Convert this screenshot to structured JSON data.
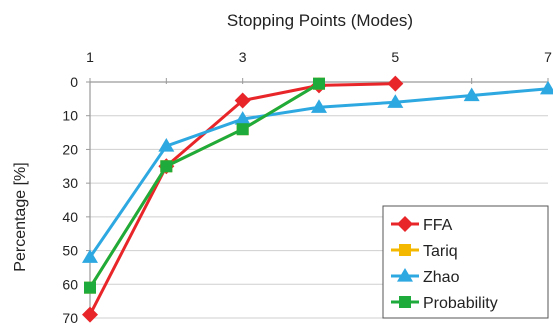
{
  "chart_data": {
    "type": "line",
    "title": "Stopping Points (Modes)",
    "xlabel": "Stopping Points (Modes)",
    "ylabel": "Percentage [%]",
    "xlim": [
      1,
      7
    ],
    "ylim": [
      0,
      70
    ],
    "y_inverted": true,
    "x_axis_position": "top",
    "x_ticks": [
      1,
      2,
      3,
      4,
      5,
      6,
      7
    ],
    "x_tick_labels": [
      "1",
      "3",
      "5",
      "7"
    ],
    "y_ticks": [
      0,
      10,
      20,
      30,
      40,
      50,
      60,
      70
    ],
    "y_tick_labels": [
      "0",
      "10",
      "20",
      "30",
      "40",
      "50",
      "60",
      "70"
    ],
    "grid": "horizontal",
    "legend_position": "bottom-right",
    "series": [
      {
        "name": "FFA",
        "color": "#e8262a",
        "marker": "diamond",
        "x": [
          1,
          2,
          3,
          4,
          5
        ],
        "values": [
          69,
          25,
          5.5,
          1,
          0.5
        ]
      },
      {
        "name": "Tariq",
        "color": "#f5b800",
        "marker": "square",
        "x": [
          1,
          2,
          3,
          4
        ],
        "values": [
          61,
          25,
          14,
          0.5
        ]
      },
      {
        "name": "Zhao",
        "color": "#2ea8e0",
        "marker": "triangle",
        "x": [
          1,
          2,
          3,
          4,
          5,
          6,
          7
        ],
        "values": [
          52,
          19,
          11,
          7.5,
          6,
          4,
          2
        ]
      },
      {
        "name": "Probability",
        "color": "#1faa3c",
        "marker": "square",
        "x": [
          1,
          2,
          3,
          4
        ],
        "values": [
          61,
          25,
          14,
          0.5
        ]
      }
    ]
  }
}
